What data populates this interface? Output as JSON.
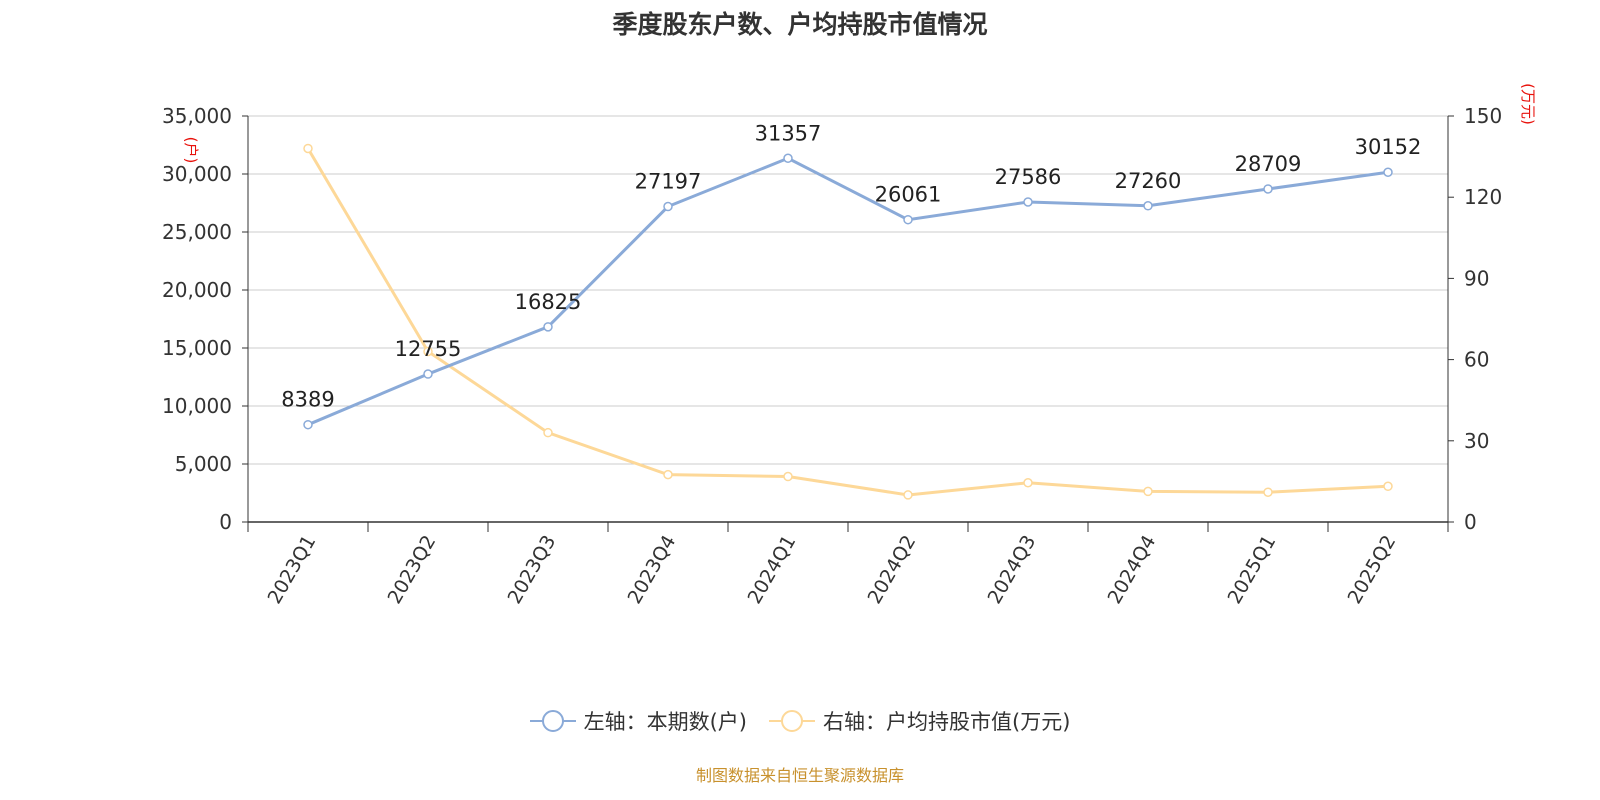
{
  "title": "季度股东户数、户均持股市值情况",
  "footer": "制图数据来自恒生聚源数据库",
  "colors": {
    "series1": "#8aaad8",
    "series2": "#fdd898",
    "unit": "#e8120c",
    "grid": "#cccccc"
  },
  "chart_data": {
    "type": "line",
    "title": "季度股东户数、户均持股市值情况",
    "categories": [
      "2023Q1",
      "2023Q2",
      "2023Q3",
      "2023Q4",
      "2024Q1",
      "2024Q2",
      "2024Q3",
      "2024Q4",
      "2025Q1",
      "2025Q2"
    ],
    "y_left": {
      "unit": "(户)",
      "ylim": [
        0,
        35000
      ],
      "ticks": [
        "0",
        "5,000",
        "10,000",
        "15,000",
        "20,000",
        "25,000",
        "30,000",
        "35,000"
      ]
    },
    "y_right": {
      "unit": "(万元)",
      "ylim": [
        0,
        150
      ],
      "ticks": [
        "0",
        "30",
        "60",
        "90",
        "120",
        "150"
      ]
    },
    "grid": true,
    "legend_position": "bottom",
    "series": [
      {
        "name": "左轴：本期数(户)",
        "axis": "left",
        "values": [
          8389,
          12755,
          16825,
          27197,
          31357,
          26061,
          27586,
          27260,
          28709,
          30152
        ],
        "data_labels": true
      },
      {
        "name": "右轴：户均持股市值(万元)",
        "axis": "right",
        "values": [
          138,
          63,
          33,
          17.5,
          16.8,
          10,
          14.5,
          11.3,
          11,
          13.2
        ],
        "data_labels": false
      }
    ]
  }
}
